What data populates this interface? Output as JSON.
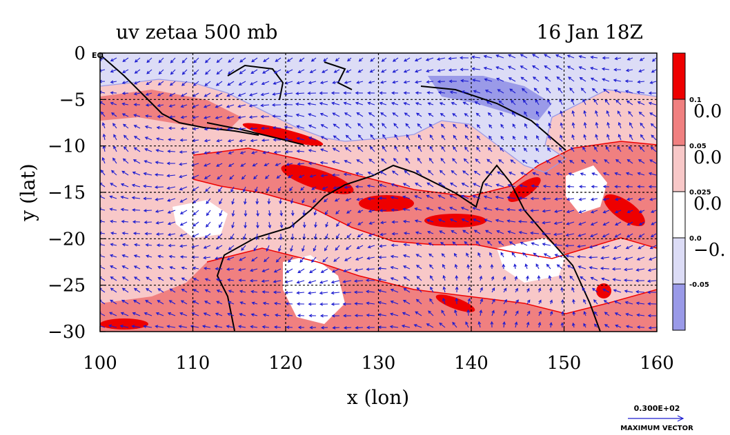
{
  "chart_data": {
    "type": "heatmap",
    "title": "uv zetaa 500 mb",
    "timestamp": "16 Jan 18Z",
    "xlabel": "x (lon)",
    "ylabel": "y (lat)",
    "xlim": [
      100,
      160
    ],
    "ylim": [
      -30,
      0
    ],
    "x_ticks": [
      100,
      110,
      120,
      130,
      140,
      150,
      160
    ],
    "y_ticks": [
      {
        "value": 0,
        "label": "0"
      },
      {
        "value": -5,
        "label": "−5"
      },
      {
        "value": -10,
        "label": "−10"
      },
      {
        "value": -15,
        "label": "−15"
      },
      {
        "value": -20,
        "label": "−20"
      },
      {
        "value": -25,
        "label": "−25"
      },
      {
        "value": -30,
        "label": "−30"
      }
    ],
    "corner_label": "EQ",
    "grid": true,
    "colorbar": {
      "levels": [
        {
          "color": "#ee0000",
          "label": "0.1"
        },
        {
          "color": "#f08080",
          "label": "0.05"
        },
        {
          "color": "#f8c8c8",
          "label": "0.025"
        },
        {
          "color": "#ffffff",
          "label": "0.0"
        },
        {
          "color": "#dcdcf6",
          "label": "-0.05"
        },
        {
          "color": "#9a9ae8",
          "label": ""
        }
      ],
      "tick_labels": [
        "0.1",
        "0.05",
        "0.025",
        "0.0",
        "-0.05"
      ],
      "big_labels": [
        "0.0",
        "0.0",
        "0.0",
        "−0."
      ]
    },
    "vector_legend": {
      "value_label": "0.300E+02",
      "caption": "MAXIMUM VECTOR"
    },
    "colors": {
      "strong_positive": "#ee0000",
      "positive": "#f08080",
      "weak_positive": "#f8c8c8",
      "negative": "#dcdcf6",
      "strong_negative": "#9a9ae8",
      "vectors": "#1a1ad0",
      "coastline": "#000000"
    }
  }
}
